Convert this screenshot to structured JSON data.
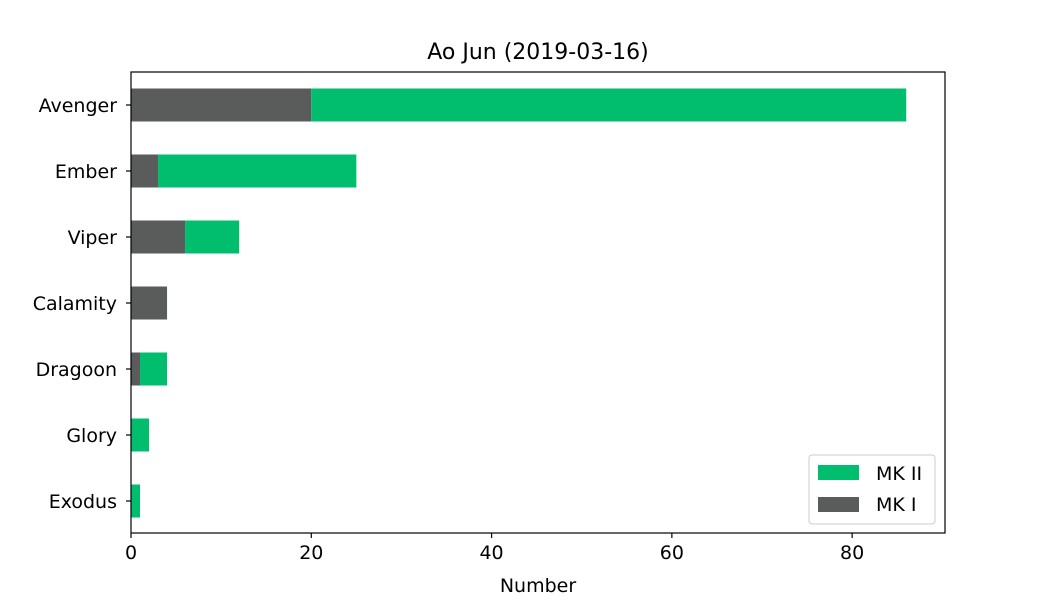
{
  "chart_data": {
    "type": "bar",
    "orientation": "horizontal",
    "stacked": true,
    "title": "Ao Jun (2019-03-16)",
    "xlabel": "Number",
    "ylabel": "",
    "categories": [
      "Avenger",
      "Ember",
      "Viper",
      "Calamity",
      "Dragoon",
      "Glory",
      "Exodus"
    ],
    "series": [
      {
        "name": "MK I",
        "color": "#5a5c5b",
        "values": [
          20,
          3,
          6,
          4,
          1,
          0,
          0
        ]
      },
      {
        "name": "MK II",
        "color": "#00be6e",
        "values": [
          66,
          22,
          6,
          0,
          3,
          2,
          1
        ]
      }
    ],
    "xlim": [
      0,
      90.3
    ],
    "xticks": [
      0,
      20,
      40,
      60,
      80
    ],
    "xtick_labels": [
      "0",
      "20",
      "40",
      "60",
      "80"
    ],
    "legend": {
      "placement": "lower-right",
      "entries": [
        {
          "label": "MK II",
          "color": "#00be6e"
        },
        {
          "label": "MK I",
          "color": "#5a5c5b"
        }
      ]
    },
    "grid": false
  }
}
